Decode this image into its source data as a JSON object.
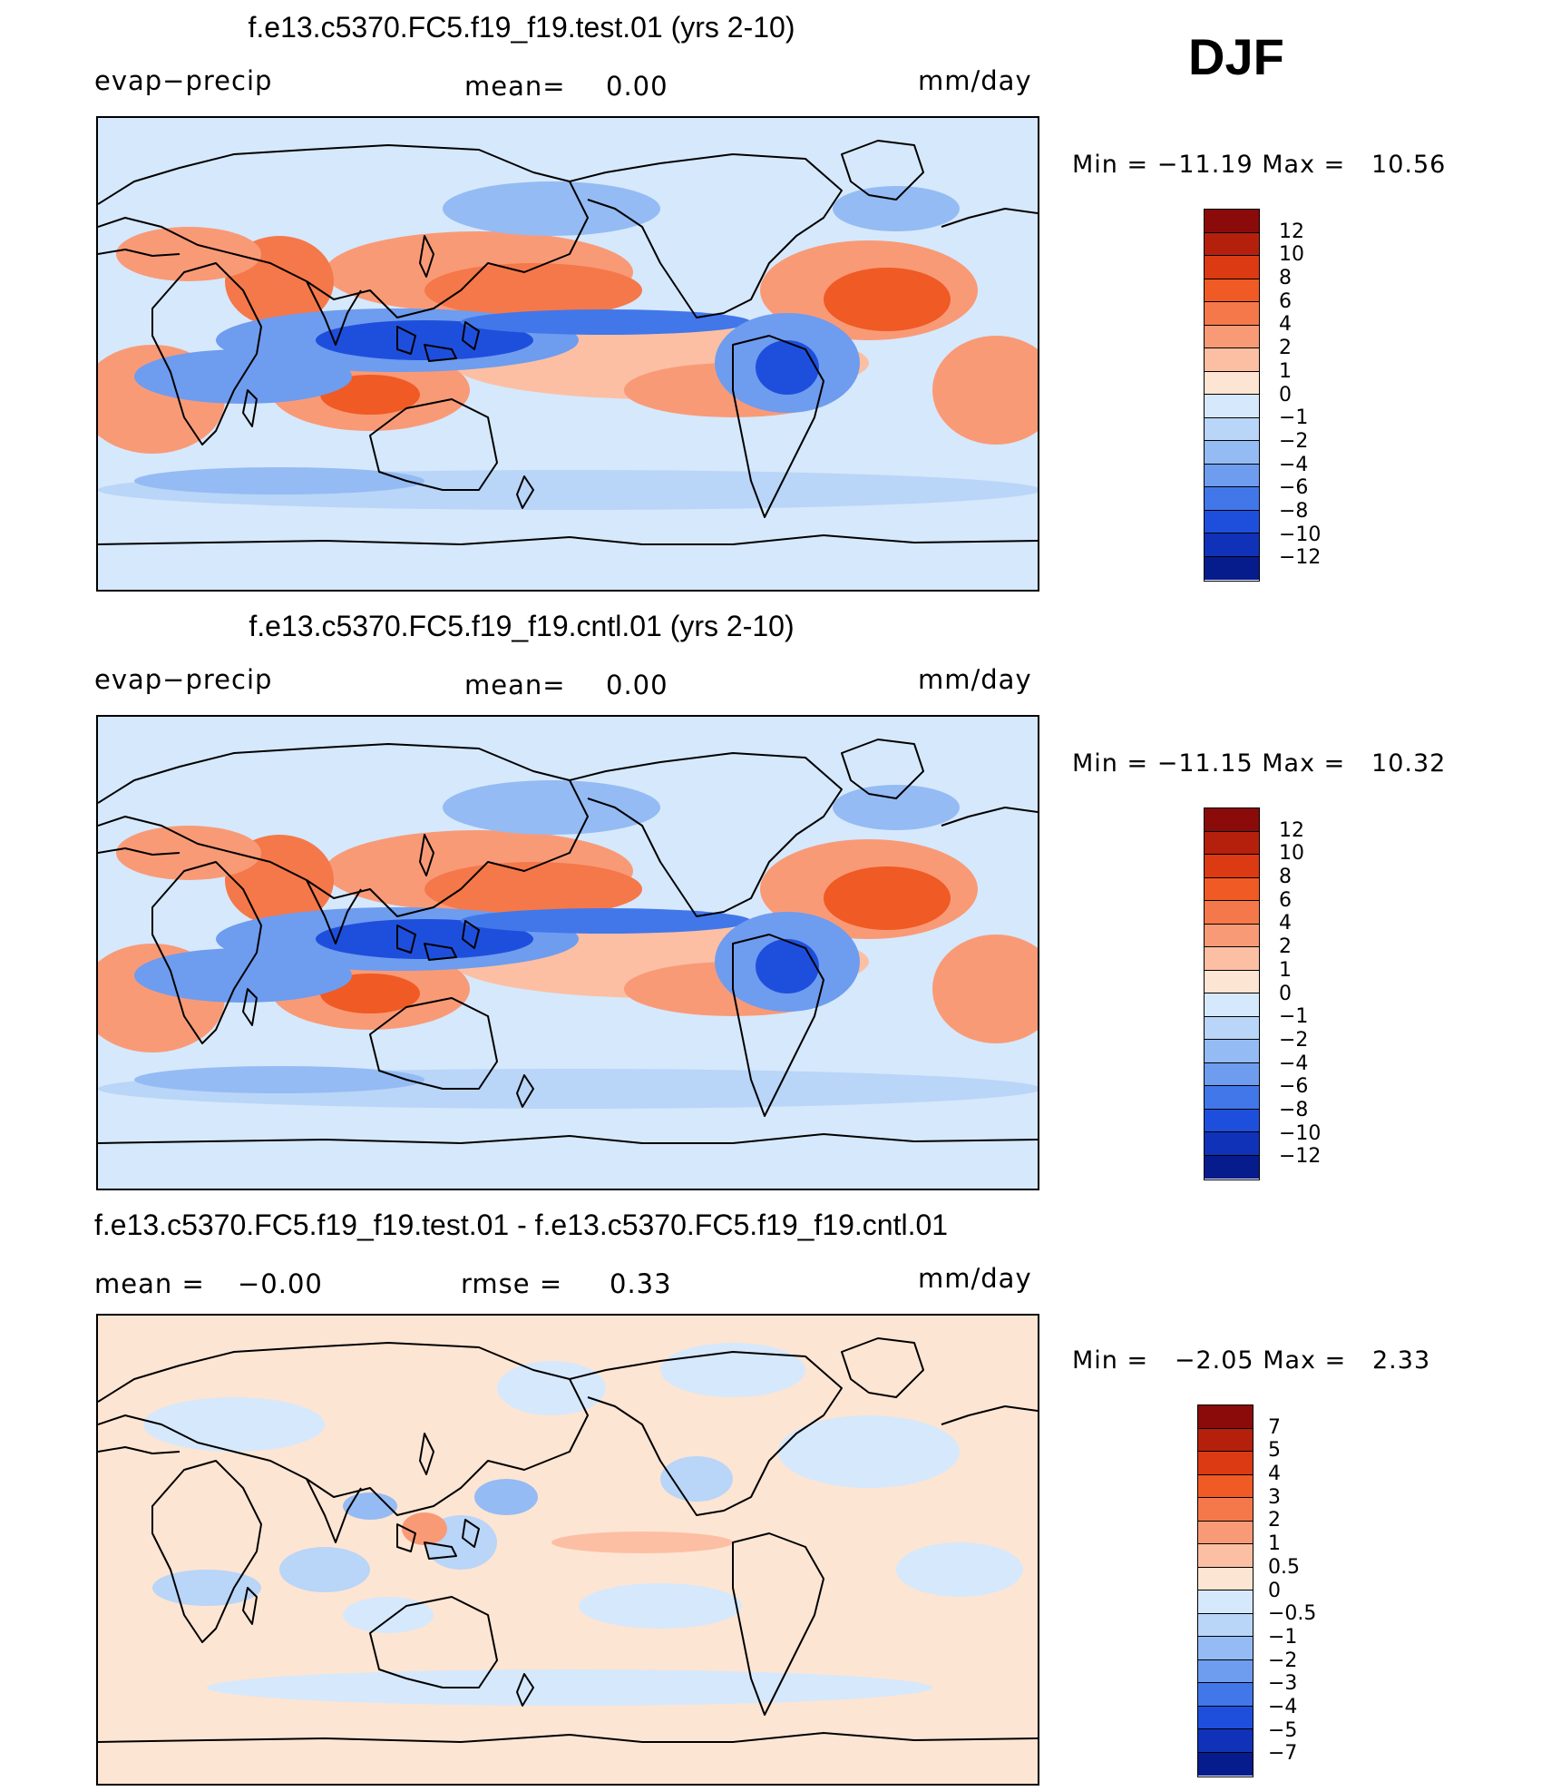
{
  "season": "DJF",
  "panels": [
    {
      "title": "f.e13.c5370.FC5.f19_f19.test.01 (yrs 2-10)",
      "variable": "evap−precip",
      "mean_label": "mean=",
      "mean_value": "0.00",
      "units": "mm/day",
      "min_label": "Min",
      "min_value": "−11.19",
      "max_label": "Max",
      "max_value": "10.56",
      "colorbar": {
        "labels": [
          "12",
          "10",
          "8",
          "6",
          "4",
          "2",
          "1",
          "0",
          "−1",
          "−2",
          "−4",
          "−6",
          "−8",
          "−10",
          "−12"
        ],
        "colors": [
          "#8b0a0a",
          "#b5200d",
          "#db3a12",
          "#f05a24",
          "#f5784a",
          "#f99a77",
          "#fcbfa3",
          "#fde5d3",
          "#d6e8fb",
          "#b9d5f8",
          "#94bbf3",
          "#6e9cef",
          "#4277ea",
          "#1e4fdc",
          "#0f32b9",
          "#061b8c"
        ]
      },
      "fill_level": "mild"
    },
    {
      "title": "f.e13.c5370.FC5.f19_f19.cntl.01 (yrs 2-10)",
      "variable": "evap−precip",
      "mean_label": "mean=",
      "mean_value": "0.00",
      "units": "mm/day",
      "min_label": "Min",
      "min_value": "−11.15",
      "max_label": "Max",
      "max_value": "10.32",
      "colorbar": {
        "labels": [
          "12",
          "10",
          "8",
          "6",
          "4",
          "2",
          "1",
          "0",
          "−1",
          "−2",
          "−4",
          "−6",
          "−8",
          "−10",
          "−12"
        ],
        "colors": [
          "#8b0a0a",
          "#b5200d",
          "#db3a12",
          "#f05a24",
          "#f5784a",
          "#f99a77",
          "#fcbfa3",
          "#fde5d3",
          "#d6e8fb",
          "#b9d5f8",
          "#94bbf3",
          "#6e9cef",
          "#4277ea",
          "#1e4fdc",
          "#0f32b9",
          "#061b8c"
        ]
      },
      "fill_level": "mild"
    },
    {
      "title": "f.e13.c5370.FC5.f19_f19.test.01 - f.e13.c5370.FC5.f19_f19.cntl.01",
      "mean_label": "mean =",
      "mean_value": "−0.00",
      "rmse_label": "rmse =",
      "rmse_value": "0.33",
      "units": "mm/day",
      "min_label": "Min",
      "min_value": "−2.05",
      "max_label": "Max",
      "max_value": "2.33",
      "colorbar": {
        "labels": [
          "7",
          "5",
          "4",
          "3",
          "2",
          "1",
          "0.5",
          "0",
          "−0.5",
          "−1",
          "−2",
          "−3",
          "−4",
          "−5",
          "−7"
        ],
        "colors": [
          "#8b0a0a",
          "#b5200d",
          "#db3a12",
          "#f05a24",
          "#f5784a",
          "#f99a77",
          "#fcbfa3",
          "#fde5d3",
          "#d6e8fb",
          "#b9d5f8",
          "#94bbf3",
          "#6e9cef",
          "#4277ea",
          "#1e4fdc",
          "#0f32b9",
          "#061b8c"
        ]
      },
      "fill_level": "diff"
    }
  ]
}
